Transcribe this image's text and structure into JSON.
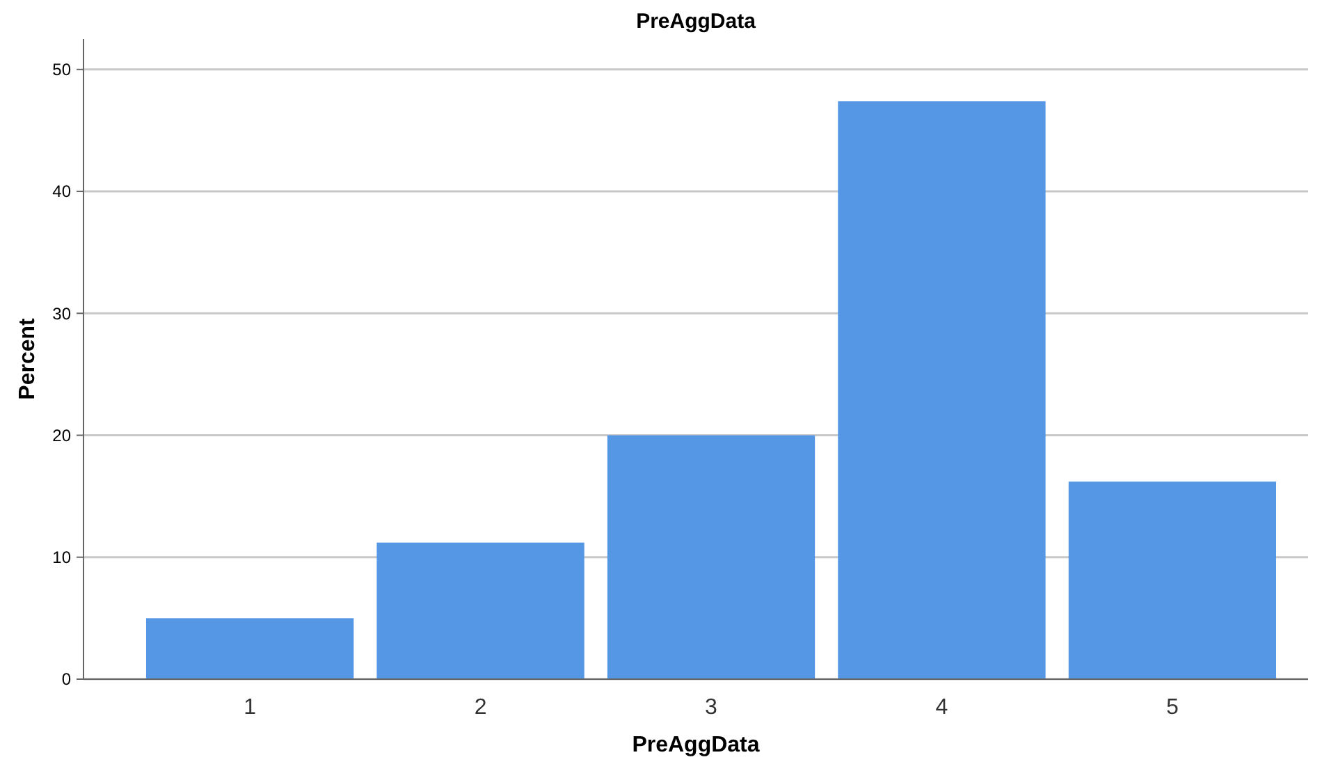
{
  "chart_data": {
    "type": "bar",
    "title": "PreAggData",
    "xlabel": "PreAggData",
    "ylabel": "Percent",
    "categories": [
      "1",
      "2",
      "3",
      "4",
      "5"
    ],
    "values": [
      5.0,
      11.2,
      20.0,
      47.4,
      16.2
    ],
    "color": "#5597e5",
    "ylim": [
      0,
      52.5
    ],
    "yticks": [
      0,
      10,
      20,
      30,
      40,
      50
    ],
    "grid": "y"
  }
}
